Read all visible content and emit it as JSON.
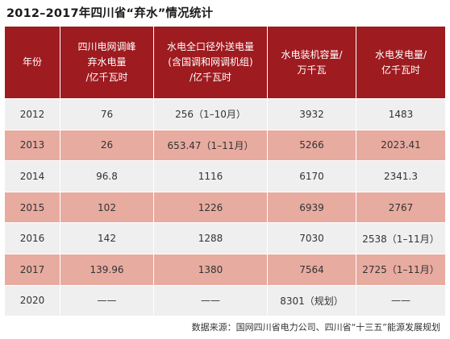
{
  "title": "2012–2017年四川省“弃水”情况统计",
  "table": {
    "headers": [
      "年份",
      "四川电网调峰\n弃水电量\n/亿千瓦时",
      "水电全口径外送电量\n(含国调和网调机组)\n/亿千瓦时",
      "水电装机容量/\n万千瓦",
      "水电发电量/\n亿千瓦时"
    ],
    "rows": [
      [
        "2012",
        "76",
        "256（1–10月）",
        "3932",
        "1483"
      ],
      [
        "2013",
        "26",
        "653.47（1–11月）",
        "5266",
        "2023.41"
      ],
      [
        "2014",
        "96.8",
        "1116",
        "6170",
        "2341.3"
      ],
      [
        "2015",
        "102",
        "1226",
        "6939",
        "2767"
      ],
      [
        "2016",
        "142",
        "1288",
        "7030",
        "2538（1–11月）"
      ],
      [
        "2017",
        "139.96",
        "1380",
        "7564",
        "2725（1–11月）"
      ],
      [
        "2020",
        "——",
        "——",
        "8301（规划）",
        "——"
      ]
    ]
  },
  "source": "数据来源：国网四川省电力公司、四川省“十三五”能源发展规划",
  "colors": {
    "header_bg": "#9e1b1f",
    "row_light": "#efefef",
    "row_pink": "#e8aba0"
  }
}
